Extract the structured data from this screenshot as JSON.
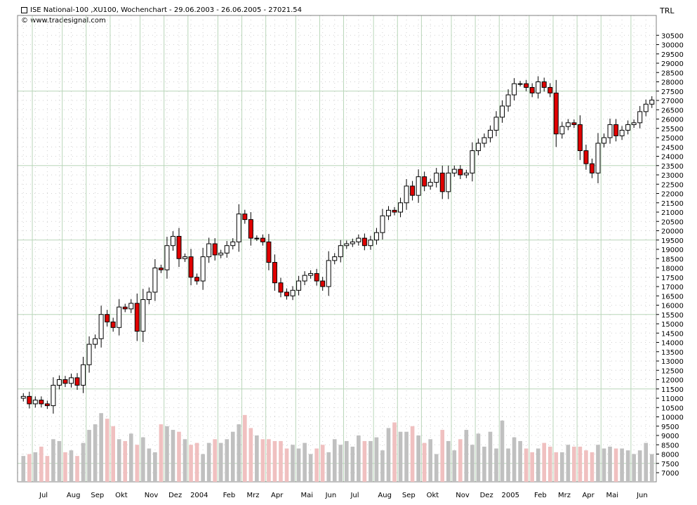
{
  "header": {
    "title": "ISE National-100 ,XU100, Wochenchart - 29.06.2003 - 26.06.2005 - 27021.54",
    "source": "www.tradesignal.com",
    "currency": "TRL"
  },
  "colors": {
    "up": "#ffffff",
    "down": "#e00000",
    "vol_up": "#c0c0c0",
    "vol_down": "#f0c0c0",
    "grid": "#b9d6b9",
    "dots": "#d0d0d0"
  },
  "chart_data": {
    "type": "candlestick",
    "title": "ISE National-100 ,XU100, Wochenchart - 29.06.2003 - 26.06.2005 - 27021.54",
    "ylabel": "TRL",
    "ylim": [
      7000,
      31000
    ],
    "yticks": [
      "7000",
      "7500",
      "8000",
      "8500",
      "9000",
      "9500",
      "10000",
      "10500",
      "11000",
      "11500",
      "12000",
      "12500",
      "13000",
      "13500",
      "14000",
      "14500",
      "15000",
      "15500",
      "16000",
      "16500",
      "17000",
      "17500",
      "18000",
      "18500",
      "19000",
      "19500",
      "20000",
      "20500",
      "21000",
      "21500",
      "22000",
      "22500",
      "23000",
      "23500",
      "24000",
      "24500",
      "25000",
      "25500",
      "26000",
      "26500",
      "27000",
      "27500",
      "28000",
      "28500",
      "29000",
      "29500",
      "30000",
      "30500"
    ],
    "xticks": [
      "Jul",
      "Aug",
      "Sep",
      "Okt",
      "Nov",
      "Dez",
      "2004",
      "Feb",
      "Mrz",
      "Apr",
      "Mai",
      "Jun",
      "Jul",
      "Aug",
      "Sep",
      "Okt",
      "Nov",
      "Dez",
      "2005",
      "Feb",
      "Mrz",
      "Apr",
      "Mai",
      "Jun"
    ],
    "xtick_week": [
      2,
      7,
      11,
      15,
      20,
      24,
      28,
      33,
      37,
      41,
      46,
      50,
      54,
      59,
      63,
      67,
      72,
      76,
      80,
      85,
      89,
      93,
      97,
      102
    ],
    "closes": [
      11100,
      10700,
      10900,
      10700,
      10600,
      11700,
      12000,
      11800,
      12100,
      11700,
      12800,
      13900,
      14200,
      15500,
      15100,
      14800,
      15900,
      15800,
      16100,
      14600,
      16300,
      16700,
      18000,
      17900,
      19200,
      19700,
      18500,
      18600,
      17500,
      17300,
      18600,
      19300,
      18700,
      18800,
      19200,
      19400,
      20900,
      20600,
      19600,
      19600,
      19400,
      18300,
      17200,
      16700,
      16500,
      16800,
      17300,
      17600,
      17700,
      17300,
      17000,
      18400,
      18600,
      19200,
      19300,
      19400,
      19600,
      19200,
      19500,
      19900,
      20800,
      21100,
      21000,
      21500,
      22400,
      21900,
      22900,
      22400,
      22600,
      23100,
      22100,
      23100,
      23300,
      23000,
      23100,
      24300,
      24700,
      25000,
      25400,
      26100,
      26700,
      27300,
      27900,
      27900,
      27700,
      27400,
      28000,
      27700,
      27400,
      25200,
      25600,
      25800,
      25700,
      24300,
      23600,
      23100,
      24700,
      25000,
      25700,
      25100,
      25400,
      25700,
      25800,
      26400,
      26800,
      27021
    ],
    "volumes": [
      7900,
      8000,
      8100,
      8400,
      7900,
      8800,
      8700,
      8100,
      8200,
      7900,
      8600,
      9300,
      9600,
      10200,
      9900,
      9500,
      8800,
      8700,
      9100,
      8500,
      8900,
      8300,
      8100,
      9600,
      9500,
      9300,
      9200,
      8800,
      8500,
      8600,
      8000,
      8600,
      8800,
      8600,
      8800,
      9200,
      9600,
      10100,
      9400,
      9000,
      8800,
      8800,
      8700,
      8700,
      8300,
      8500,
      8300,
      8600,
      8000,
      8300,
      8500,
      8100,
      8800,
      8500,
      8700,
      8400,
      9000,
      8700,
      8700,
      8900,
      8200,
      9400,
      9700,
      9200,
      9200,
      9500,
      9000,
      8600,
      8800,
      8000,
      9300,
      8700,
      8200,
      8800,
      9300,
      8500,
      9100,
      8400,
      9200,
      8300,
      9800,
      8300,
      8900,
      8700,
      8300,
      8100,
      8300,
      8600,
      8400,
      8100,
      8100,
      8500,
      8400,
      8400,
      8200,
      8100,
      8500,
      8300,
      8400,
      8300,
      8300,
      8200,
      8000,
      8200,
      8600,
      8000
    ]
  }
}
